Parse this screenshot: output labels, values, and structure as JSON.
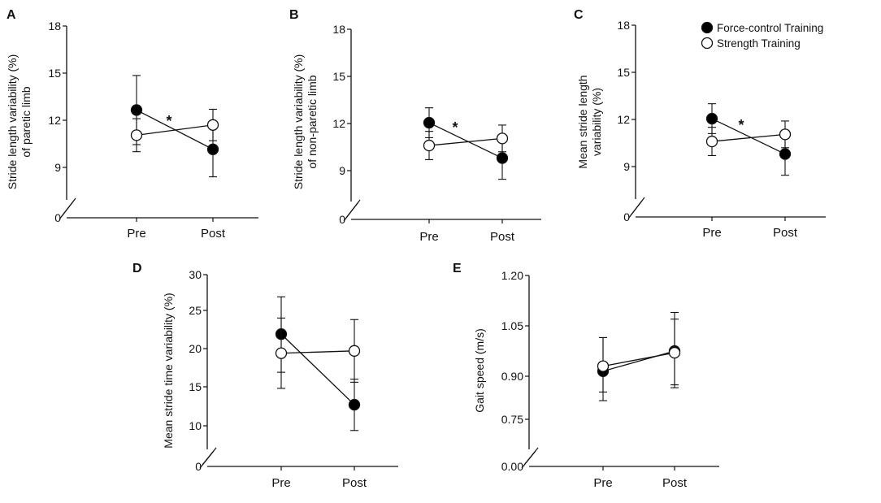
{
  "legend": [
    {
      "name": "Force-control Training",
      "fill": "#000000"
    },
    {
      "name": "Strength Training",
      "fill": "#ffffff"
    }
  ],
  "colors": {
    "filled": "#000000",
    "open": "#ffffff",
    "axis": "#111111"
  },
  "chart_data": [
    {
      "panel": "A",
      "type": "line",
      "ylabel": [
        "Stride length variability (%)",
        "of paretic limb"
      ],
      "categories": [
        "Pre",
        "Post"
      ],
      "yticks": [
        0,
        9,
        12,
        15,
        18
      ],
      "tick_labels": [
        "0",
        "9",
        "12",
        "15",
        "18"
      ],
      "ylim": [
        0,
        18
      ],
      "axis_break": true,
      "significance": "*",
      "series": [
        {
          "name": "Force-control Training",
          "values": [
            12.65,
            10.15
          ],
          "errors": [
            2.2,
            1.75
          ]
        },
        {
          "name": "Strength Training",
          "values": [
            11.05,
            11.7
          ],
          "errors": [
            1.05,
            1.0
          ]
        }
      ]
    },
    {
      "panel": "B",
      "type": "line",
      "ylabel": [
        "Stride length variability (%)",
        "of non-paretic limb"
      ],
      "categories": [
        "Pre",
        "Post"
      ],
      "yticks": [
        0,
        9,
        12,
        15,
        18
      ],
      "tick_labels": [
        "0",
        "9",
        "12",
        "15",
        "18"
      ],
      "ylim": [
        0,
        18
      ],
      "axis_break": true,
      "significance": "*",
      "series": [
        {
          "name": "Force-control Training",
          "values": [
            12.05,
            9.8
          ],
          "errors": [
            0.95,
            1.35
          ]
        },
        {
          "name": "Strength Training",
          "values": [
            10.6,
            11.05
          ],
          "errors": [
            0.9,
            0.85
          ]
        }
      ]
    },
    {
      "panel": "C",
      "type": "line",
      "ylabel": [
        "Mean stride length",
        "variability (%)"
      ],
      "categories": [
        "Pre",
        "Post"
      ],
      "yticks": [
        0,
        9,
        12,
        15,
        18
      ],
      "tick_labels": [
        "0",
        "9",
        "12",
        "15",
        "18"
      ],
      "ylim": [
        0,
        18
      ],
      "axis_break": true,
      "significance": "*",
      "series": [
        {
          "name": "Force-control Training",
          "values": [
            12.05,
            9.8
          ],
          "errors": [
            0.95,
            1.35
          ]
        },
        {
          "name": "Strength Training",
          "values": [
            10.6,
            11.05
          ],
          "errors": [
            0.9,
            0.85
          ]
        }
      ]
    },
    {
      "panel": "D",
      "type": "line",
      "ylabel": [
        "Mean stride time variability (%)"
      ],
      "categories": [
        "Pre",
        "Post"
      ],
      "yticks": [
        0,
        10,
        15,
        20,
        25,
        30
      ],
      "tick_labels": [
        "0",
        "10",
        "15",
        "20",
        "25",
        "30"
      ],
      "ylim": [
        0,
        30
      ],
      "axis_break": true,
      "significance": "",
      "series": [
        {
          "name": "Force-control Training",
          "values": [
            21.9,
            12.7
          ],
          "errors": [
            5.0,
            3.3
          ]
        },
        {
          "name": "Strength Training",
          "values": [
            19.4,
            19.7
          ],
          "errors": [
            4.6,
            4.1
          ]
        }
      ]
    },
    {
      "panel": "E",
      "type": "line",
      "ylabel": [
        "Gait speed (m/s)"
      ],
      "categories": [
        "Pre",
        "Post"
      ],
      "yticks": [
        0,
        0.75,
        0.9,
        1.05,
        1.2
      ],
      "tick_labels": [
        "0.00",
        "0.75",
        "0.90",
        "1.05",
        "1.20"
      ],
      "ylim": [
        0,
        1.2
      ],
      "axis_break": true,
      "significance": "",
      "series": [
        {
          "name": "Force-control Training",
          "values": [
            0.915,
            0.975
          ],
          "errors": [
            0.1,
            0.115
          ]
        },
        {
          "name": "Strength Training",
          "values": [
            0.93,
            0.97
          ],
          "errors": [
            0.085,
            0.1
          ]
        }
      ]
    }
  ]
}
